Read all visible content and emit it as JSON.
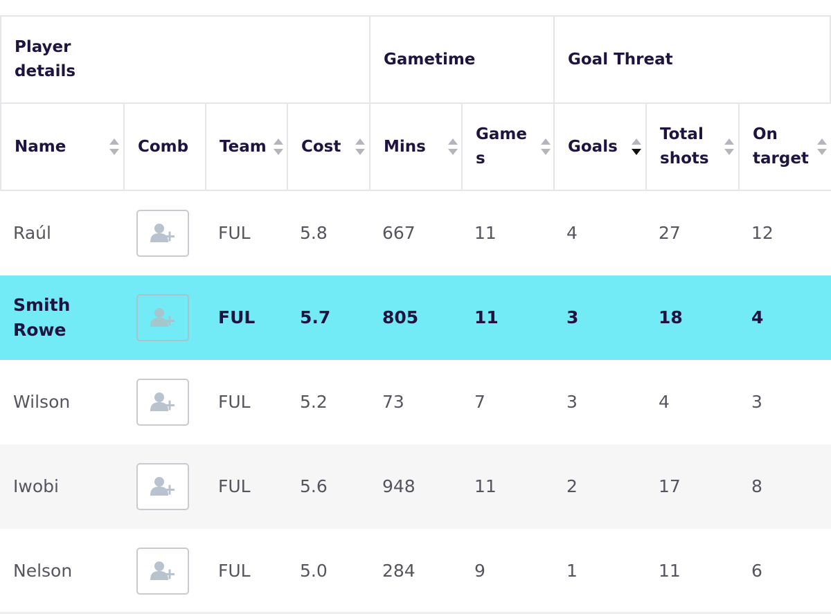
{
  "groups": {
    "player_details": "Player details",
    "gametime": "Gametime",
    "goal_threat": "Goal Threat"
  },
  "columns": {
    "name": "Name",
    "comb": "Comb",
    "team": "Team",
    "cost": "Cost",
    "mins": "Mins",
    "games": "Game s",
    "goals": "Goals",
    "total_shots": "Total shots",
    "on_target": "On target"
  },
  "sort": {
    "active_column": "Goals",
    "direction": "descending"
  },
  "icons": {
    "sort": "sort-updown-icon",
    "add_player": "add-user-icon"
  },
  "colors": {
    "highlight_row": "#72ebf7",
    "header_text": "#1f1440",
    "body_text": "#555560"
  },
  "rows": [
    {
      "name": "Raúl",
      "team": "FUL",
      "cost": "5.8",
      "mins": "667",
      "games": "11",
      "goals": "4",
      "total_shots": "27",
      "on_target": "12"
    },
    {
      "name": "Smith Rowe",
      "team": "FUL",
      "cost": "5.7",
      "mins": "805",
      "games": "11",
      "goals": "3",
      "total_shots": "18",
      "on_target": "4",
      "highlighted": true
    },
    {
      "name": "Wilson",
      "team": "FUL",
      "cost": "5.2",
      "mins": "73",
      "games": "7",
      "goals": "3",
      "total_shots": "4",
      "on_target": "3"
    },
    {
      "name": "Iwobi",
      "team": "FUL",
      "cost": "5.6",
      "mins": "948",
      "games": "11",
      "goals": "2",
      "total_shots": "17",
      "on_target": "8"
    },
    {
      "name": "Nelson",
      "team": "FUL",
      "cost": "5.0",
      "mins": "284",
      "games": "9",
      "goals": "1",
      "total_shots": "11",
      "on_target": "6"
    }
  ]
}
